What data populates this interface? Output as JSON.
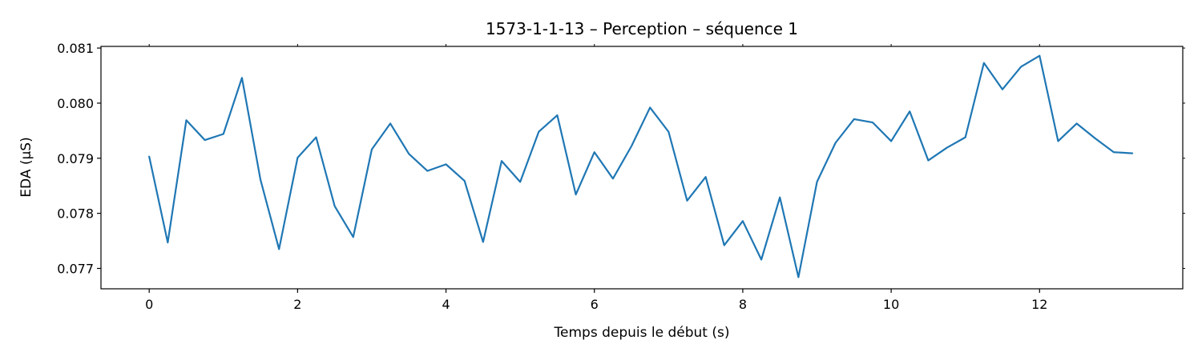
{
  "chart_data": {
    "type": "line",
    "title": "1573-1-1-13 – Perception – séquence 1",
    "xlabel": "Temps depuis le début (s)",
    "ylabel": "EDA (µS)",
    "xlim": [
      -0.65,
      13.93
    ],
    "ylim": [
      0.07663,
      0.08103
    ],
    "xticks": [
      0,
      2,
      4,
      6,
      8,
      10,
      12
    ],
    "yticks": [
      0.077,
      0.078,
      0.079,
      0.08,
      0.081
    ],
    "xtick_labels": [
      "0",
      "2",
      "4",
      "6",
      "8",
      "10",
      "12"
    ],
    "ytick_labels": [
      "0.077",
      "0.078",
      "0.079",
      "0.080",
      "0.081"
    ],
    "line_color": "#1f77b4",
    "grid": false,
    "series": [
      {
        "x": [
          0,
          0.25,
          0.5,
          0.75,
          1.0,
          1.25,
          1.5,
          1.75,
          2.0,
          2.25,
          2.5,
          2.75,
          3.0,
          3.25,
          3.5,
          3.75,
          4.0,
          4.25,
          4.5,
          4.75,
          5.0,
          5.25,
          5.5,
          5.75,
          6.0,
          6.25,
          6.5,
          6.75,
          7.0,
          7.25,
          7.5,
          7.75,
          8.0,
          8.25,
          8.5,
          8.75,
          9.0,
          9.25,
          9.5,
          9.75,
          10.0,
          10.25,
          10.5,
          10.75,
          11.0,
          11.25,
          11.5,
          11.75,
          12.0,
          12.25,
          12.5,
          12.75,
          13.0,
          13.25
        ],
        "y": [
          0.07903,
          0.07747,
          0.07969,
          0.07933,
          0.07944,
          0.08046,
          0.07861,
          0.07735,
          0.07901,
          0.07938,
          0.07813,
          0.07757,
          0.07916,
          0.07963,
          0.07908,
          0.07877,
          0.07889,
          0.07859,
          0.07748,
          0.07895,
          0.07857,
          0.07948,
          0.07978,
          0.07834,
          0.07911,
          0.07863,
          0.07922,
          0.07992,
          0.07948,
          0.07823,
          0.07866,
          0.07742,
          0.07786,
          0.07716,
          0.07829,
          0.07684,
          0.07857,
          0.07928,
          0.07971,
          0.07965,
          0.07931,
          0.07985,
          0.07896,
          0.07919,
          0.07938,
          0.08073,
          0.08025,
          0.08066,
          0.08086,
          0.07931,
          0.07963,
          0.07936,
          0.07911,
          0.07909
        ]
      }
    ]
  }
}
